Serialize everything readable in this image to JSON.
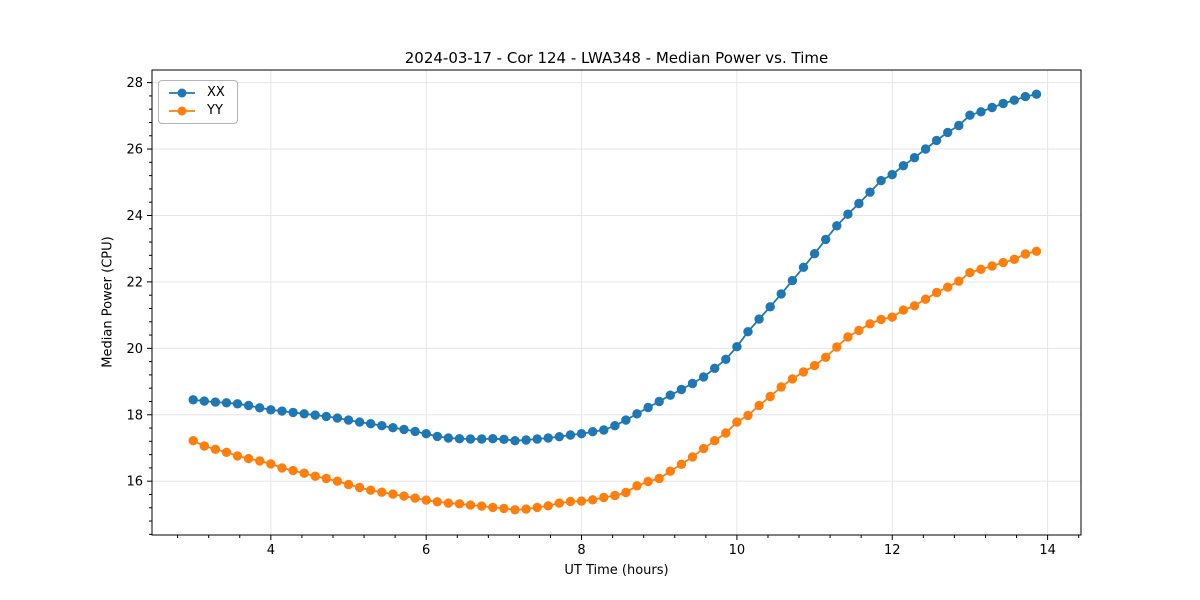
{
  "chart_data": {
    "type": "line",
    "title": "2024-03-17 - Cor 124 - LWA348 - Median Power vs. Time",
    "xlabel": "UT Time (hours)",
    "ylabel": "Median Power (CPU)",
    "xlim": [
      2.47,
      14.43
    ],
    "ylim": [
      14.38,
      28.38
    ],
    "xticks": [
      4,
      6,
      8,
      10,
      12,
      14
    ],
    "yticks": [
      16,
      18,
      20,
      22,
      24,
      26,
      28
    ],
    "x_minor_step": 0.4,
    "y_minor_step": 0.4,
    "grid": true,
    "grid_color": "#e6e6e6",
    "legend_position": "upper left",
    "background_color": "#ffffff",
    "x": [
      3.0,
      3.143,
      3.286,
      3.429,
      3.571,
      3.714,
      3.857,
      4.0,
      4.143,
      4.286,
      4.429,
      4.571,
      4.714,
      4.857,
      5.0,
      5.143,
      5.286,
      5.429,
      5.571,
      5.714,
      5.857,
      6.0,
      6.143,
      6.286,
      6.429,
      6.571,
      6.714,
      6.857,
      7.0,
      7.143,
      7.286,
      7.429,
      7.571,
      7.714,
      7.857,
      8.0,
      8.143,
      8.286,
      8.429,
      8.571,
      8.714,
      8.857,
      9.0,
      9.143,
      9.286,
      9.429,
      9.571,
      9.714,
      9.857,
      10.0,
      10.143,
      10.286,
      10.429,
      10.571,
      10.714,
      10.857,
      11.0,
      11.143,
      11.286,
      11.429,
      11.571,
      11.714,
      11.857,
      12.0,
      12.143,
      12.286,
      12.429,
      12.571,
      12.714,
      12.857,
      13.0,
      13.143,
      13.286,
      13.429,
      13.571,
      13.714,
      13.857
    ],
    "series": [
      {
        "name": "XX",
        "color": "#1f77b4",
        "marker": "o",
        "values": [
          18.45,
          18.41,
          18.38,
          18.36,
          18.33,
          18.28,
          18.21,
          18.15,
          18.11,
          18.07,
          18.03,
          17.99,
          17.95,
          17.9,
          17.84,
          17.78,
          17.73,
          17.67,
          17.61,
          17.56,
          17.5,
          17.43,
          17.35,
          17.3,
          17.28,
          17.27,
          17.27,
          17.28,
          17.26,
          17.22,
          17.24,
          17.27,
          17.3,
          17.34,
          17.39,
          17.43,
          17.49,
          17.54,
          17.67,
          17.84,
          18.03,
          18.22,
          18.4,
          18.59,
          18.76,
          18.94,
          19.14,
          19.4,
          19.67,
          20.05,
          20.5,
          20.88,
          21.25,
          21.64,
          22.04,
          22.44,
          22.85,
          23.28,
          23.69,
          24.04,
          24.36,
          24.7,
          25.05,
          25.23,
          25.5,
          25.74,
          26.0,
          26.26,
          26.5,
          26.71,
          27.02,
          27.12,
          27.25,
          27.37,
          27.47,
          27.58,
          27.65
        ]
      },
      {
        "name": "YY",
        "color": "#ff7f0e",
        "marker": "o",
        "values": [
          17.22,
          17.06,
          16.96,
          16.87,
          16.76,
          16.68,
          16.61,
          16.52,
          16.4,
          16.32,
          16.24,
          16.15,
          16.08,
          16.0,
          15.9,
          15.81,
          15.73,
          15.67,
          15.61,
          15.55,
          15.49,
          15.43,
          15.38,
          15.34,
          15.32,
          15.28,
          15.25,
          15.21,
          15.18,
          15.14,
          15.16,
          15.21,
          15.26,
          15.34,
          15.39,
          15.4,
          15.44,
          15.51,
          15.57,
          15.66,
          15.86,
          15.99,
          16.08,
          16.3,
          16.51,
          16.73,
          16.98,
          17.22,
          17.45,
          17.78,
          17.98,
          18.28,
          18.55,
          18.84,
          19.08,
          19.29,
          19.48,
          19.73,
          20.04,
          20.34,
          20.54,
          20.74,
          20.87,
          20.94,
          21.15,
          21.28,
          21.48,
          21.68,
          21.84,
          22.02,
          22.28,
          22.38,
          22.48,
          22.58,
          22.68,
          22.84,
          22.92
        ]
      }
    ]
  }
}
